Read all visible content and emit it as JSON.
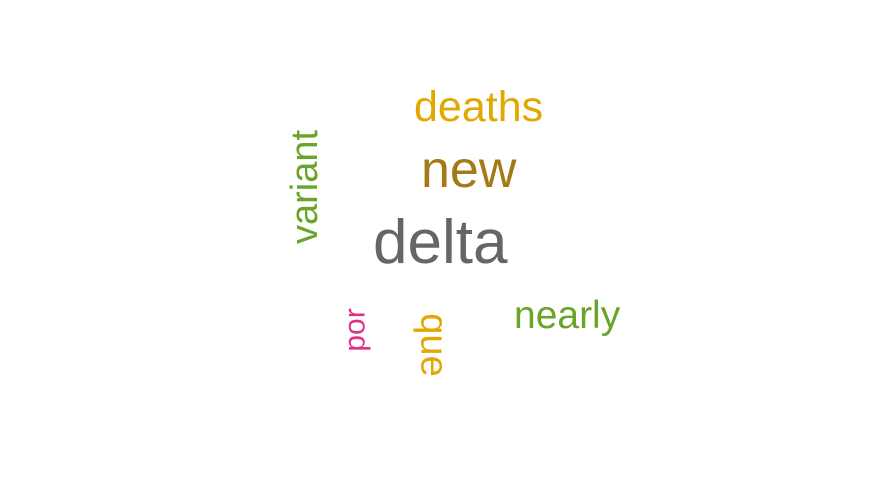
{
  "words": [
    {
      "text": "deaths",
      "color": "#e0a800"
    },
    {
      "text": "new",
      "color": "#a57818"
    },
    {
      "text": "variant",
      "color": "#6aa42a"
    },
    {
      "text": "delta",
      "color": "#666666"
    },
    {
      "text": "por",
      "color": "#e0308a"
    },
    {
      "text": "que",
      "color": "#e0a800"
    },
    {
      "text": "nearly",
      "color": "#6aa42a"
    }
  ]
}
